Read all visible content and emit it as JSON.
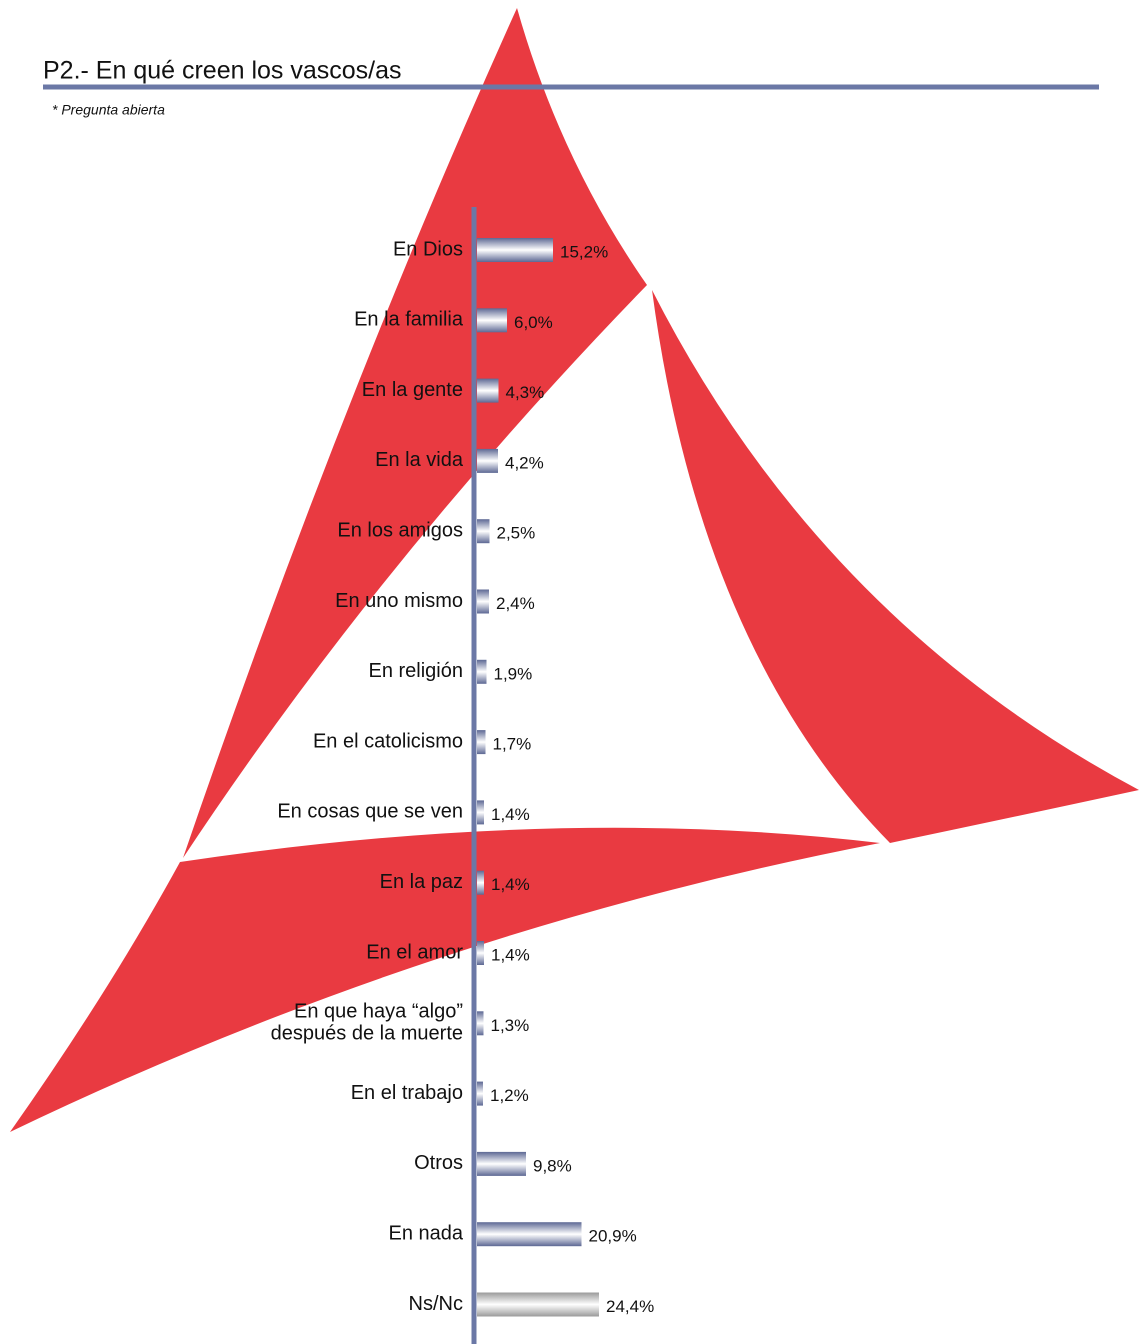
{
  "title": "P2.- En qué creen los vascos/as",
  "subtitle": "* Pregunta abierta",
  "chart_data": {
    "type": "bar",
    "orientation": "horizontal",
    "categories": [
      "En Dios",
      "En la familia",
      "En la gente",
      "En la vida",
      "En los amigos",
      "En uno mismo",
      "En religión",
      "En el catolicismo",
      "En cosas que se ven",
      "En la paz",
      "En el amor",
      "En que haya “algo”\ndespués de la muerte",
      "En el trabajo",
      "Otros",
      "En nada",
      "Ns/Nc"
    ],
    "values": [
      15.2,
      6.0,
      4.3,
      4.2,
      2.5,
      2.4,
      1.9,
      1.7,
      1.4,
      1.4,
      1.4,
      1.3,
      1.2,
      9.8,
      20.9,
      24.4
    ],
    "value_labels": [
      "15,2%",
      "6,0%",
      "4,3%",
      "4,2%",
      "2,5%",
      "2,4%",
      "1,9%",
      "1,7%",
      "1,4%",
      "1,4%",
      "1,4%",
      "1,3%",
      "1,2%",
      "9,8%",
      "20,9%",
      "24,4%"
    ],
    "colors": [
      "#5d6894",
      "#5d6894",
      "#5d6894",
      "#5d6894",
      "#5d6894",
      "#5d6894",
      "#5d6894",
      "#5d6894",
      "#5d6894",
      "#5d6894",
      "#5d6894",
      "#5d6894",
      "#5d6894",
      "#5d6894",
      "#5d6894",
      "#9a9a9a"
    ]
  }
}
